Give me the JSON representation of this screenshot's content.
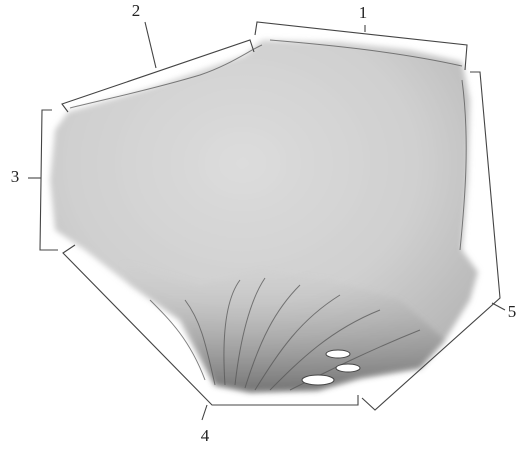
{
  "labels": [
    "1",
    "2",
    "3",
    "4",
    "5"
  ]
}
